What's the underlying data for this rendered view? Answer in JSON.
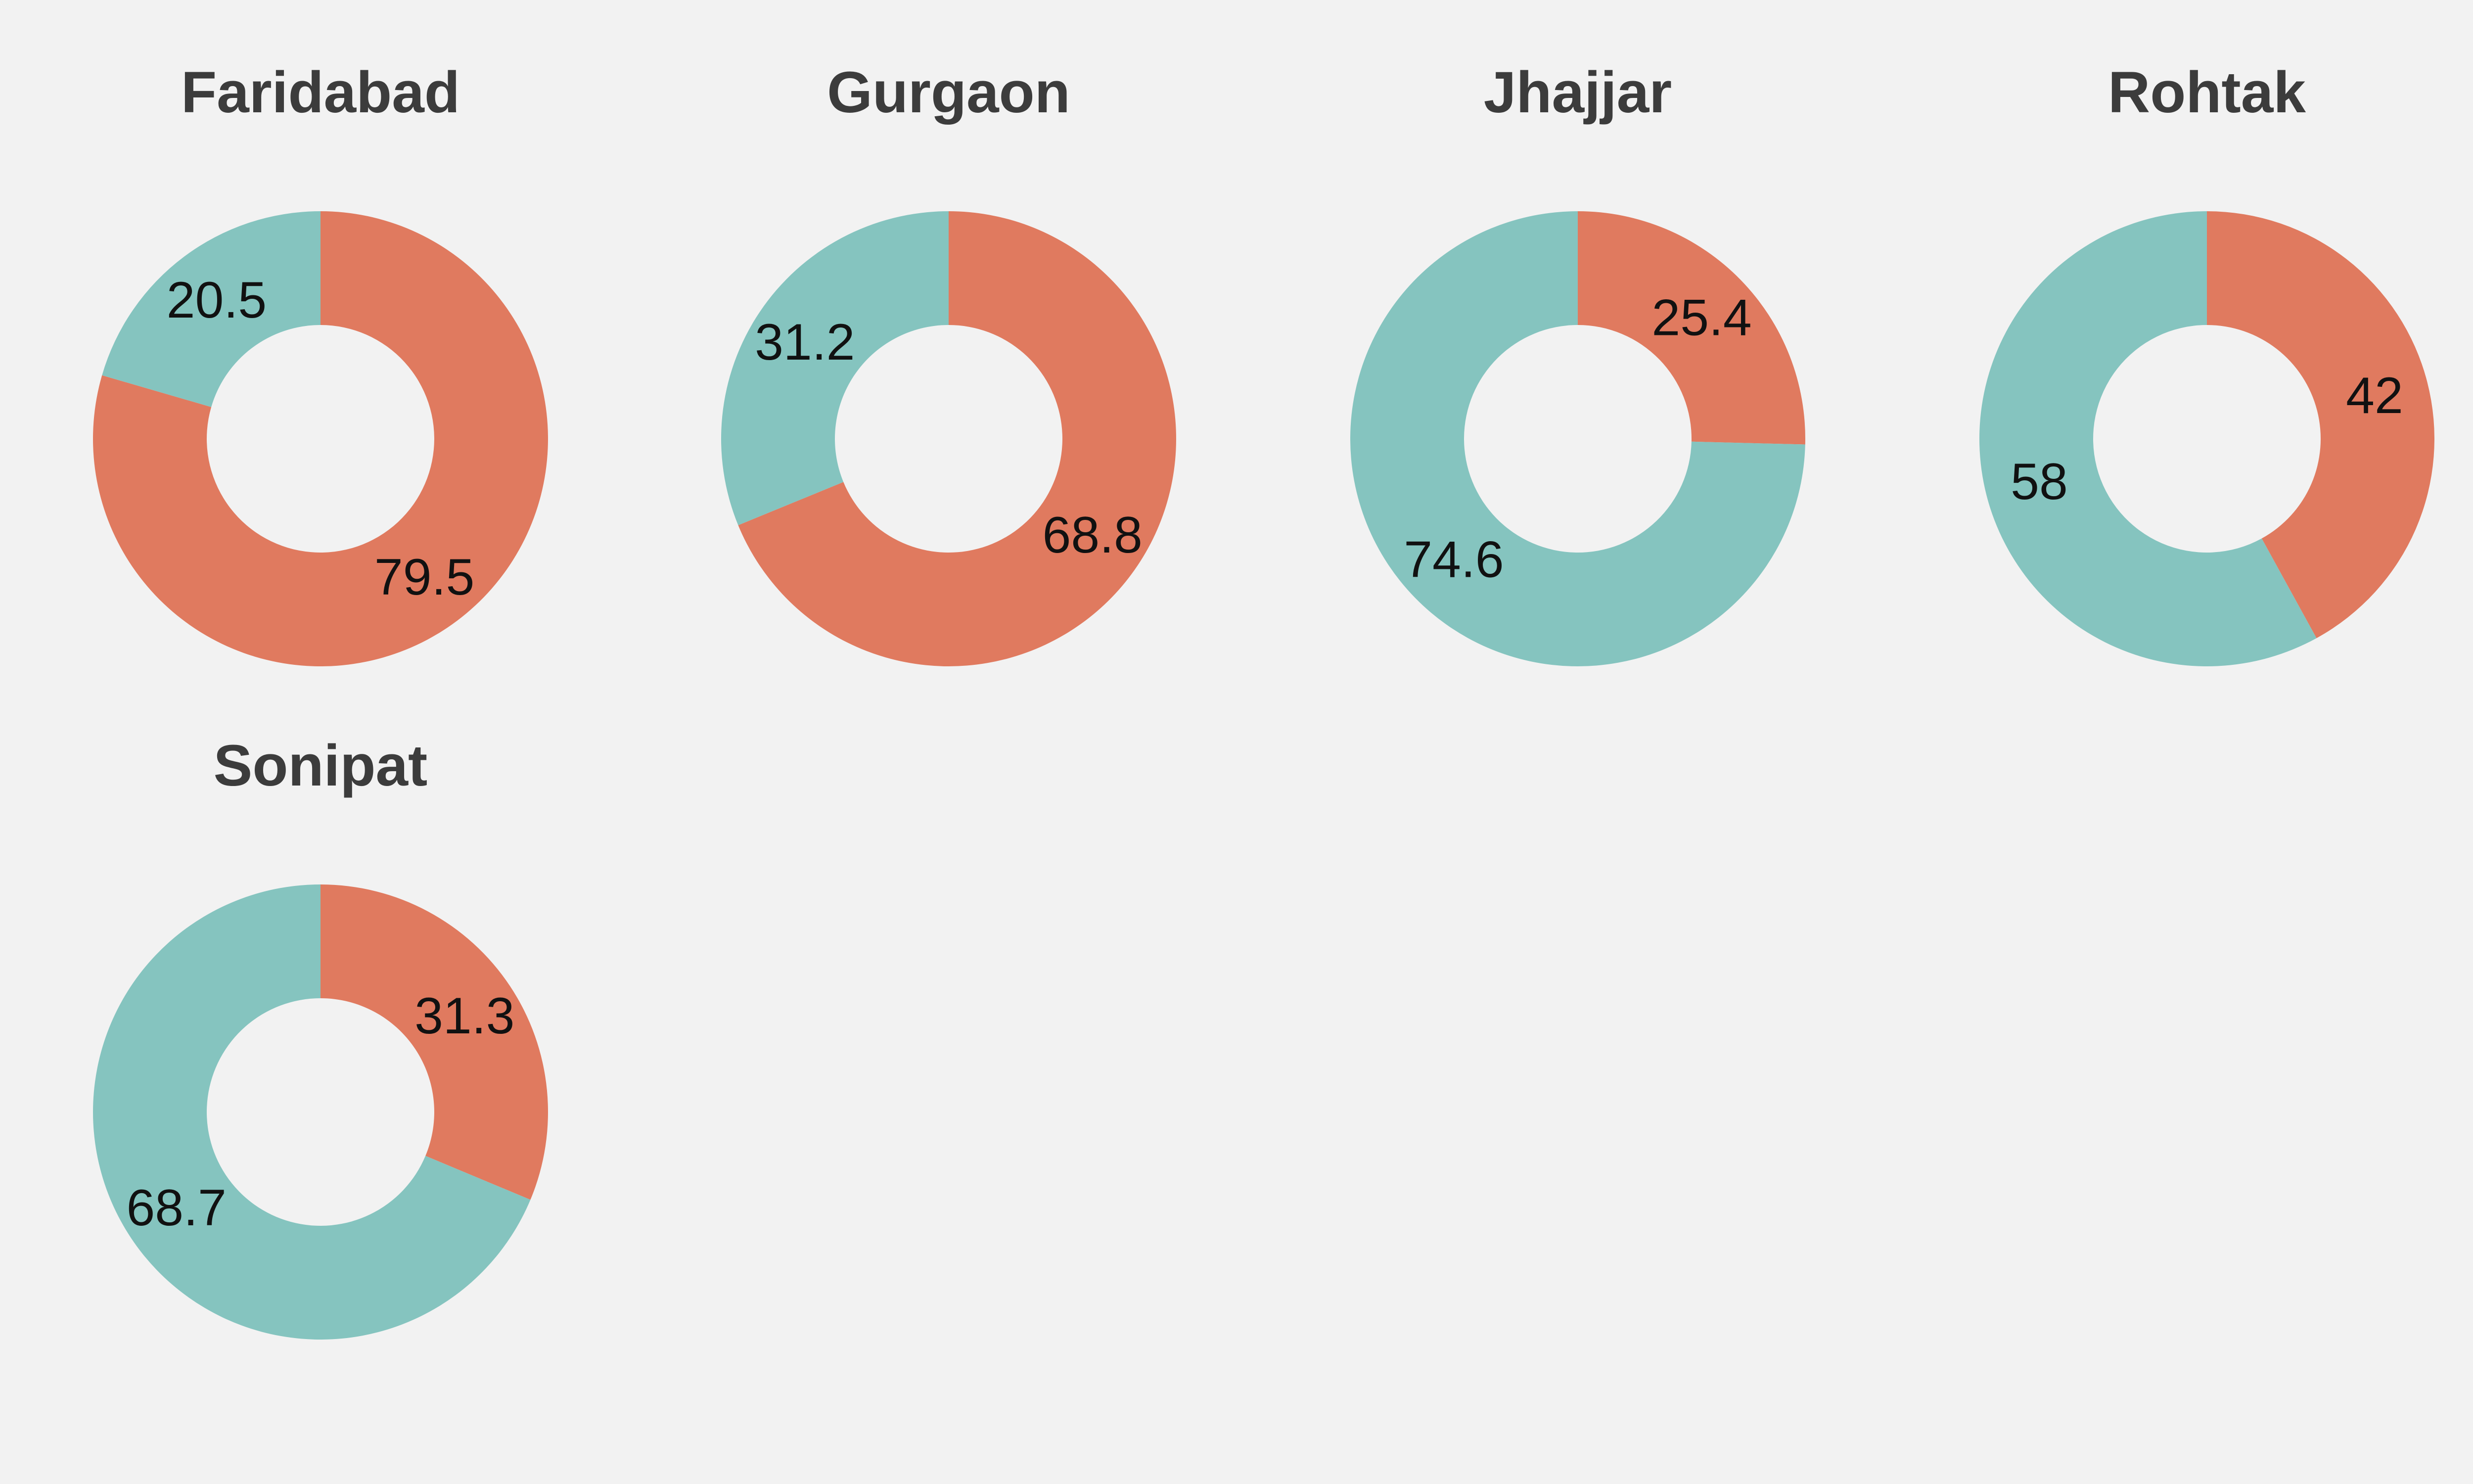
{
  "colors": {
    "background": "#f2f2f2",
    "slice_a": "#e07a5f",
    "slice_b": "#85c4bf"
  },
  "chart_data": [
    {
      "type": "pie",
      "donut": true,
      "title": "Faridabad",
      "slices": [
        {
          "value": 79.5,
          "label": "79.5",
          "color": "#e07a5f"
        },
        {
          "value": 20.5,
          "label": "20.5",
          "color": "#85c4bf"
        }
      ]
    },
    {
      "type": "pie",
      "donut": true,
      "title": "Gurgaon",
      "slices": [
        {
          "value": 68.8,
          "label": "68.8",
          "color": "#e07a5f"
        },
        {
          "value": 31.2,
          "label": "31.2",
          "color": "#85c4bf"
        }
      ]
    },
    {
      "type": "pie",
      "donut": true,
      "title": "Jhajjar",
      "slices": [
        {
          "value": 25.4,
          "label": "25.4",
          "color": "#e07a5f"
        },
        {
          "value": 74.6,
          "label": "74.6",
          "color": "#85c4bf"
        }
      ]
    },
    {
      "type": "pie",
      "donut": true,
      "title": "Rohtak",
      "slices": [
        {
          "value": 42,
          "label": "42",
          "color": "#e07a5f"
        },
        {
          "value": 58,
          "label": "58",
          "color": "#85c4bf"
        }
      ]
    },
    {
      "type": "pie",
      "donut": true,
      "title": "Sonipat",
      "slices": [
        {
          "value": 31.3,
          "label": "31.3",
          "color": "#e07a5f"
        },
        {
          "value": 68.7,
          "label": "68.7",
          "color": "#85c4bf"
        }
      ]
    }
  ]
}
